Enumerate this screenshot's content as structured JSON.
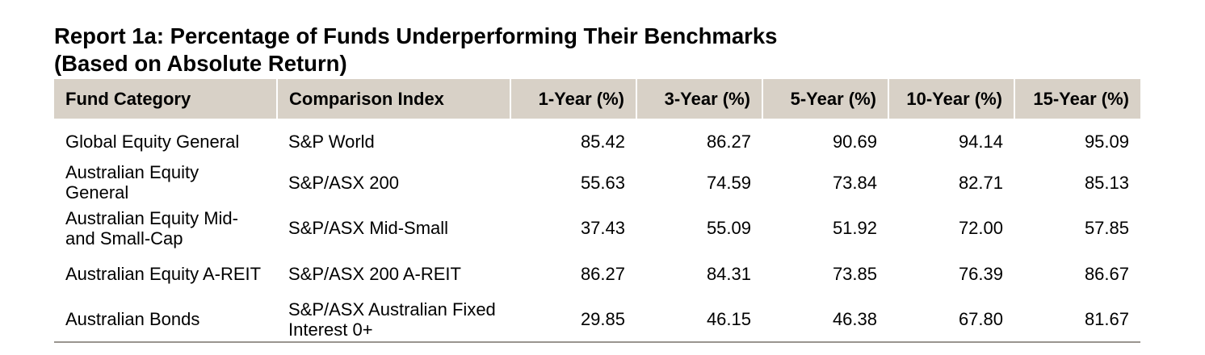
{
  "report": {
    "title_line1": "Report 1a: Percentage of Funds Underperforming Their Benchmarks",
    "title_line2": "(Based on Absolute Return)"
  },
  "table": {
    "headers": [
      "Fund Category",
      "Comparison Index",
      "1-Year (%)",
      "3-Year (%)",
      "5-Year (%)",
      "10-Year (%)",
      "15-Year (%)"
    ],
    "rows": [
      [
        "Global Equity General",
        "S&P World",
        "85.42",
        "86.27",
        "90.69",
        "94.14",
        "95.09"
      ],
      [
        "Australian Equity General",
        "S&P/ASX 200",
        "55.63",
        "74.59",
        "73.84",
        "82.71",
        "85.13"
      ],
      [
        "Australian Equity Mid- and Small-Cap",
        "S&P/ASX Mid-Small",
        "37.43",
        "55.09",
        "51.92",
        "72.00",
        "57.85"
      ],
      [
        "Australian Equity A-REIT",
        "S&P/ASX 200 A-REIT",
        "86.27",
        "84.31",
        "73.85",
        "76.39",
        "86.67"
      ],
      [
        "Australian Bonds",
        "S&P/ASX Australian Fixed Interest 0+",
        "29.85",
        "46.15",
        "46.38",
        "67.80",
        "81.67"
      ]
    ]
  },
  "colors": {
    "header_background": "#d8d1c7",
    "bottom_rule": "#9a958f"
  }
}
